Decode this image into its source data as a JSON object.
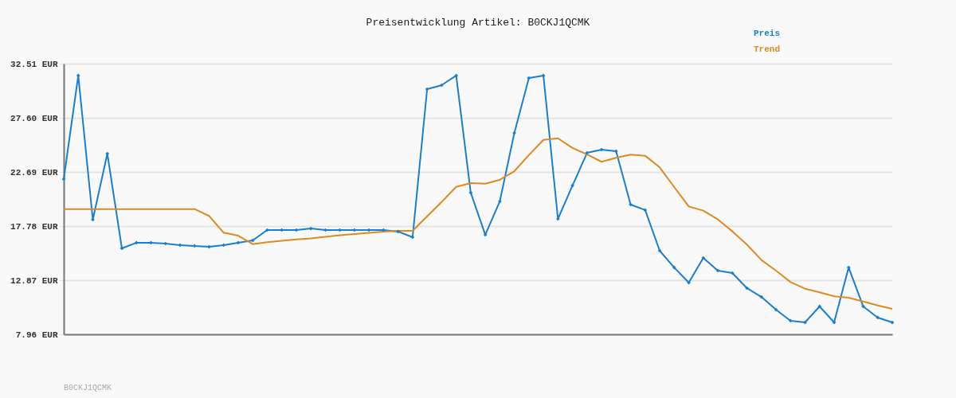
{
  "chart_data": {
    "type": "line",
    "title": "Preisentwicklung Artikel: B0CKJ1QCMK",
    "categories": [
      null,
      null,
      null,
      null,
      null,
      null,
      null,
      null,
      null,
      null,
      null,
      null,
      null,
      null,
      null,
      null,
      null,
      null,
      null,
      null,
      null,
      null,
      null,
      null,
      null,
      null,
      null,
      null,
      null,
      null,
      null,
      null,
      null,
      null,
      null,
      null,
      null,
      null,
      null,
      null,
      null,
      null,
      null,
      null,
      null,
      null,
      null,
      null,
      null,
      null,
      null,
      null,
      null,
      null,
      null,
      null,
      null,
      null
    ],
    "series": [
      {
        "name": "Preis",
        "color": "#1b7fd0",
        "marker": "diamond",
        "values": [
          22.04,
          31.43,
          18.36,
          24.35,
          15.76,
          16.27,
          16.27,
          16.19,
          16.05,
          15.98,
          15.9,
          16.05,
          16.27,
          16.48,
          17.42,
          17.42,
          17.42,
          17.56,
          17.42,
          17.42,
          17.42,
          17.42,
          17.42,
          17.28,
          16.77,
          30.2,
          30.56,
          31.43,
          20.81,
          16.99,
          20.02,
          26.23,
          31.21,
          31.43,
          18.43,
          21.46,
          24.42,
          24.71,
          24.57,
          19.73,
          19.23,
          15.54,
          14.02,
          12.65,
          14.89,
          13.74,
          13.52,
          12.15,
          11.35,
          10.2,
          9.19,
          9.04,
          10.49,
          9.04,
          14.02,
          10.49,
          9.48,
          9.04
        ]
      },
      {
        "name": "Trend",
        "color": "#e08a1e",
        "marker": "none",
        "values": [
          19.32,
          19.32,
          19.32,
          19.32,
          19.32,
          19.32,
          19.32,
          19.32,
          19.32,
          19.32,
          18.7,
          17.18,
          16.91,
          16.14,
          16.31,
          16.45,
          16.57,
          16.66,
          16.8,
          16.95,
          17.05,
          17.17,
          17.28,
          17.35,
          17.35,
          18.66,
          19.97,
          21.34,
          21.68,
          21.63,
          21.97,
          22.76,
          24.21,
          25.6,
          25.74,
          24.86,
          24.28,
          23.61,
          23.97,
          24.26,
          24.16,
          23.1,
          21.32,
          19.56,
          19.18,
          18.38,
          17.3,
          16.1,
          14.7,
          13.74,
          12.7,
          12.1,
          11.77,
          11.41,
          11.28,
          10.94,
          10.58,
          10.27
        ]
      }
    ],
    "ylim": [
      7.96,
      32.51
    ],
    "yticks": [
      {
        "value": 7.96,
        "label": "7.96 EUR"
      },
      {
        "value": 12.87,
        "label": "12.87 EUR"
      },
      {
        "value": 17.78,
        "label": "17.78 EUR"
      },
      {
        "value": 22.69,
        "label": "22.69 EUR"
      },
      {
        "value": 27.6,
        "label": "27.60 EUR"
      },
      {
        "value": 32.51,
        "label": "32.51 EUR"
      }
    ],
    "grid": "y",
    "legend": "top right",
    "line_style": "solid",
    "annotations": [
      "B0CKJ1QCMK"
    ]
  }
}
